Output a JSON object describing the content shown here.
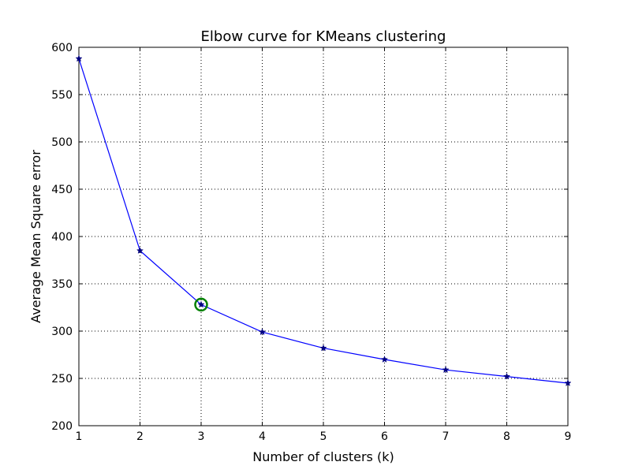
{
  "chart_data": {
    "type": "line",
    "title": "Elbow curve for KMeans clustering",
    "xlabel": "Number of clusters (k)",
    "ylabel": "Average Mean Square error",
    "xlim": [
      1,
      9
    ],
    "ylim": [
      200,
      600
    ],
    "x_ticks": [
      "1",
      "2",
      "3",
      "4",
      "5",
      "6",
      "7",
      "8",
      "9"
    ],
    "y_ticks": [
      "200",
      "250",
      "300",
      "350",
      "400",
      "450",
      "500",
      "550",
      "600"
    ],
    "grid": true,
    "legend": "none",
    "series": [
      {
        "x": [
          1,
          2,
          3,
          4,
          5,
          6,
          7,
          8,
          9
        ],
        "values": [
          588,
          385,
          328,
          299,
          282,
          270,
          259,
          252,
          245
        ],
        "color": "#0000ff",
        "marker": "star",
        "marker_color": "#00007f"
      }
    ],
    "highlight": {
      "x": 3,
      "y": 328,
      "shape": "circle",
      "color": "#008000"
    }
  }
}
